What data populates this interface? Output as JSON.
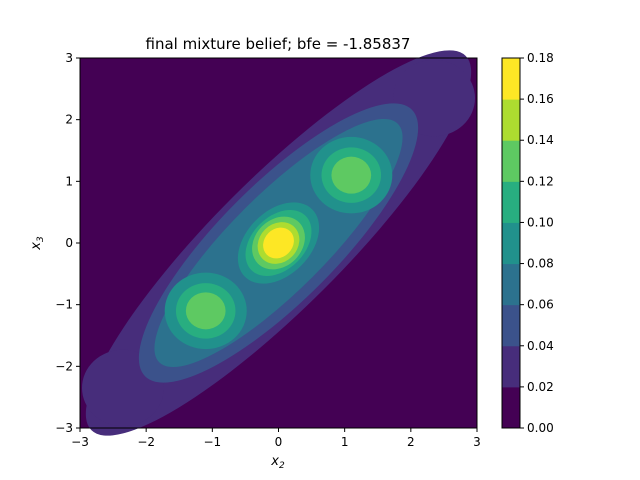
{
  "chart_data": {
    "type": "contourf",
    "title": "final mixture belief; bfe = -1.85837",
    "xlabel": "x",
    "xlabel_sub": "2",
    "ylabel": "x",
    "ylabel_sub": "3",
    "xlim": [
      -3,
      3
    ],
    "ylim": [
      -3,
      3
    ],
    "xticks": [
      "−3",
      "−2",
      "−1",
      "0",
      "1",
      "2",
      "3"
    ],
    "yticks": [
      "−3",
      "−2",
      "−1",
      "0",
      "1",
      "2",
      "3"
    ],
    "colorbar": {
      "levels": [
        0.0,
        0.02,
        0.04,
        0.06,
        0.08,
        0.1,
        0.12,
        0.14,
        0.16,
        0.18
      ],
      "ticks": [
        "0.00",
        "0.02",
        "0.04",
        "0.06",
        "0.08",
        "0.10",
        "0.12",
        "0.14",
        "0.16",
        "0.18"
      ],
      "colors": [
        "#440154",
        "#472d7b",
        "#3b528b",
        "#2c728e",
        "#21918c",
        "#28ae80",
        "#5ec962",
        "#addc30",
        "#fde725"
      ]
    },
    "peaks": [
      {
        "x": 0.0,
        "y": 0.0,
        "level_band": "0.16-0.18"
      },
      {
        "x": 1.1,
        "y": 1.1,
        "level_band": "0.12-0.14"
      },
      {
        "x": -1.1,
        "y": -1.1,
        "level_band": "0.12-0.14"
      },
      {
        "x": 2.35,
        "y": 2.35,
        "level_band": "0.02-0.04"
      },
      {
        "x": -2.35,
        "y": -2.35,
        "level_band": "0.02-0.04"
      }
    ]
  }
}
